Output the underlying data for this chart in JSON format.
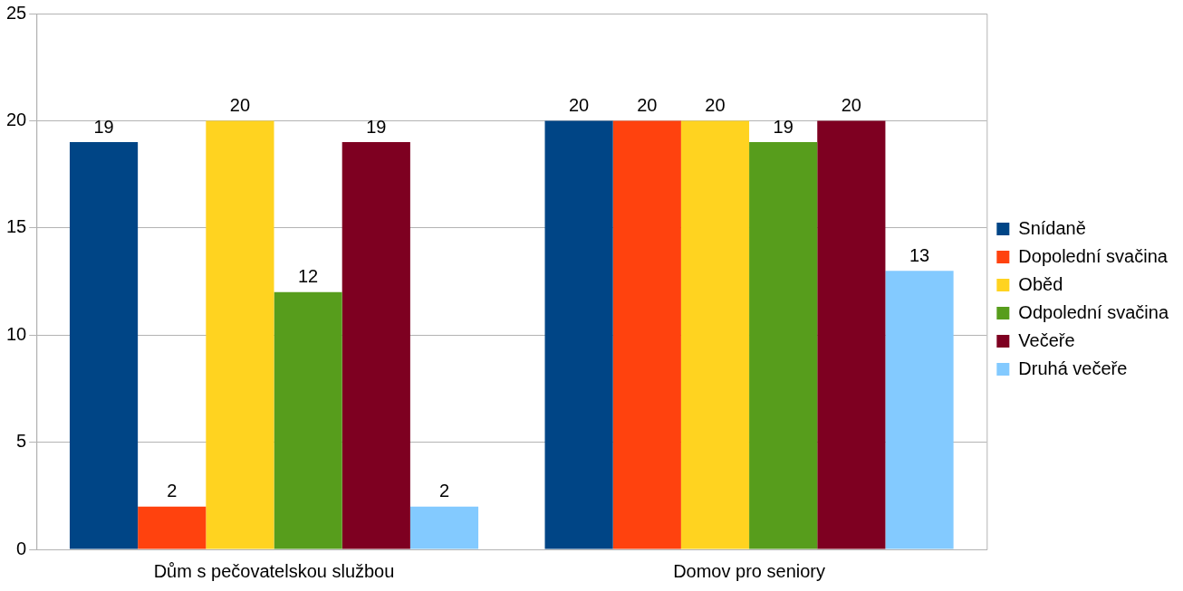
{
  "chart_data": {
    "type": "bar",
    "categories": [
      "Dům s pečovatelskou službou",
      "Domov pro seniory"
    ],
    "series": [
      {
        "name": "Snídaně",
        "color": "#004586",
        "values": [
          19,
          20
        ]
      },
      {
        "name": "Dopolední svačina",
        "color": "#ff420e",
        "values": [
          2,
          20
        ]
      },
      {
        "name": "Oběd",
        "color": "#ffd320",
        "values": [
          20,
          20
        ]
      },
      {
        "name": "Odpolední svačina",
        "color": "#579d1c",
        "values": [
          12,
          19
        ]
      },
      {
        "name": "Večeře",
        "color": "#7e0021",
        "values": [
          19,
          20
        ]
      },
      {
        "name": "Druhá večeře",
        "color": "#83caff",
        "values": [
          2,
          13
        ]
      }
    ],
    "ylim": [
      0,
      25
    ],
    "yticks": [
      0,
      5,
      10,
      15,
      20,
      25
    ],
    "grid": "y",
    "legend": "right",
    "data_labels": true
  }
}
